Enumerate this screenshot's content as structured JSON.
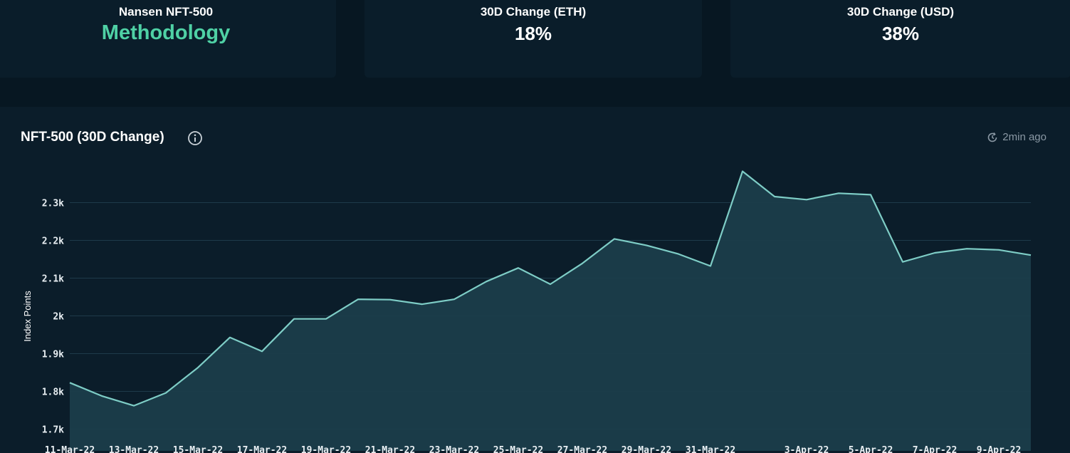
{
  "stats": [
    {
      "label": "Nansen NFT-500",
      "value": "Methodology"
    },
    {
      "label": "30D Change (ETH)",
      "value": "18%"
    },
    {
      "label": "30D Change (USD)",
      "value": "38%"
    }
  ],
  "panel": {
    "title": "NFT-500 (30D Change)",
    "updated": "2min ago"
  },
  "colors": {
    "accent": "#4fd1a5",
    "line": "#7ecdc6",
    "area": "#1b3d4a",
    "grid": "#1e3a4a"
  },
  "chart_data": {
    "type": "area",
    "ylabel": "Index Points",
    "ylim": [
      1650,
      2410
    ],
    "yticks": [
      1700,
      1800,
      1900,
      2000,
      2100,
      2200,
      2300
    ],
    "ytick_labels": [
      "1.7k",
      "1.8k",
      "1.9k",
      "2k",
      "2.1k",
      "2.2k",
      "2.3k"
    ],
    "xtick_labels": [
      "11-Mar-22",
      "13-Mar-22",
      "15-Mar-22",
      "17-Mar-22",
      "19-Mar-22",
      "21-Mar-22",
      "23-Mar-22",
      "25-Mar-22",
      "27-Mar-22",
      "29-Mar-22",
      "31-Mar-22",
      "3-Apr-22",
      "5-Apr-22",
      "7-Apr-22",
      "9-Apr-22"
    ],
    "xtick_index": [
      0,
      2,
      4,
      6,
      8,
      10,
      12,
      14,
      16,
      18,
      20,
      23,
      25,
      27,
      29
    ],
    "values": [
      1823,
      1788,
      1762,
      1796,
      1863,
      1943,
      1906,
      1992,
      1992,
      2044,
      2043,
      2031,
      2044,
      2091,
      2127,
      2084,
      2139,
      2204,
      2187,
      2164,
      2132,
      2383,
      2316,
      2308,
      2325,
      2321,
      2143,
      2167,
      2178,
      2175,
      2161
    ]
  }
}
